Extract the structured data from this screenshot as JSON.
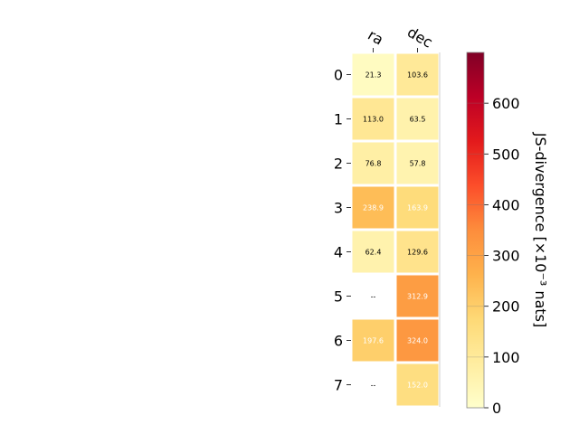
{
  "chart_data": {
    "type": "heatmap",
    "columns": [
      "ra",
      "dec"
    ],
    "rows": [
      "0",
      "1",
      "2",
      "3",
      "4",
      "5",
      "6",
      "7"
    ],
    "values": [
      [
        21.3,
        103.6
      ],
      [
        113.0,
        63.5
      ],
      [
        76.8,
        57.8
      ],
      [
        238.9,
        163.9
      ],
      [
        62.4,
        129.6
      ],
      [
        null,
        312.9
      ],
      [
        197.6,
        324.0
      ],
      [
        null,
        152.0
      ]
    ],
    "cell_labels": [
      [
        "21.3",
        "103.6"
      ],
      [
        "113.0",
        "63.5"
      ],
      [
        "76.8",
        "57.8"
      ],
      [
        "238.9",
        "163.9"
      ],
      [
        "62.4",
        "129.6"
      ],
      [
        "--",
        "312.9"
      ],
      [
        "197.6",
        "324.0"
      ],
      [
        "--",
        "152.0"
      ]
    ],
    "colorbar": {
      "label": "JS-divergence [×10⁻³ nats]",
      "range": [
        0,
        700
      ],
      "ticks": [
        0,
        100,
        200,
        300,
        400,
        500,
        600
      ],
      "tick_labels": [
        "0",
        "100",
        "200",
        "300",
        "400",
        "500",
        "600"
      ],
      "colormap": "YlOrRd"
    },
    "grid": false,
    "label_color_dark": "#000000",
    "label_color_light": "#ffffff"
  }
}
